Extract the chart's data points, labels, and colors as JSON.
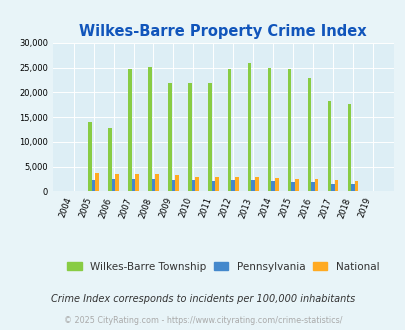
{
  "title": "Wilkes-Barre Property Crime Index",
  "years": [
    2004,
    2005,
    2006,
    2007,
    2008,
    2009,
    2010,
    2011,
    2012,
    2013,
    2014,
    2015,
    2016,
    2017,
    2018,
    2019
  ],
  "wilkes_barre": [
    0,
    14000,
    12800,
    24700,
    25100,
    21800,
    21900,
    21900,
    24700,
    25900,
    24900,
    24800,
    23000,
    18300,
    17600,
    0
  ],
  "pennsylvania": [
    0,
    2400,
    2600,
    2500,
    2500,
    2300,
    2300,
    2200,
    2300,
    2300,
    2200,
    1800,
    1800,
    1500,
    1500,
    0
  ],
  "national": [
    0,
    3700,
    3600,
    3500,
    3500,
    3300,
    3000,
    2900,
    3000,
    3000,
    2800,
    2600,
    2600,
    2400,
    2200,
    0
  ],
  "colors": {
    "wilkes_barre": "#88cc44",
    "pennsylvania": "#4488cc",
    "national": "#ffaa22",
    "fig_bg": "#e8f4f8",
    "plot_bg": "#ddeef5"
  },
  "ylim": [
    0,
    30000
  ],
  "yticks": [
    0,
    5000,
    10000,
    15000,
    20000,
    25000,
    30000
  ],
  "legend_labels": [
    "Wilkes-Barre Township",
    "Pennsylvania",
    "National"
  ],
  "footnote1": "Crime Index corresponds to incidents per 100,000 inhabitants",
  "footnote2": "© 2025 CityRating.com - https://www.cityrating.com/crime-statistics/",
  "title_color": "#1155bb",
  "footnote1_color": "#333333",
  "footnote2_color": "#aaaaaa",
  "bar_width": 0.18,
  "title_fontsize": 10.5,
  "tick_fontsize": 6.0,
  "legend_fontsize": 7.5,
  "footnote1_fontsize": 7.0,
  "footnote2_fontsize": 5.8
}
